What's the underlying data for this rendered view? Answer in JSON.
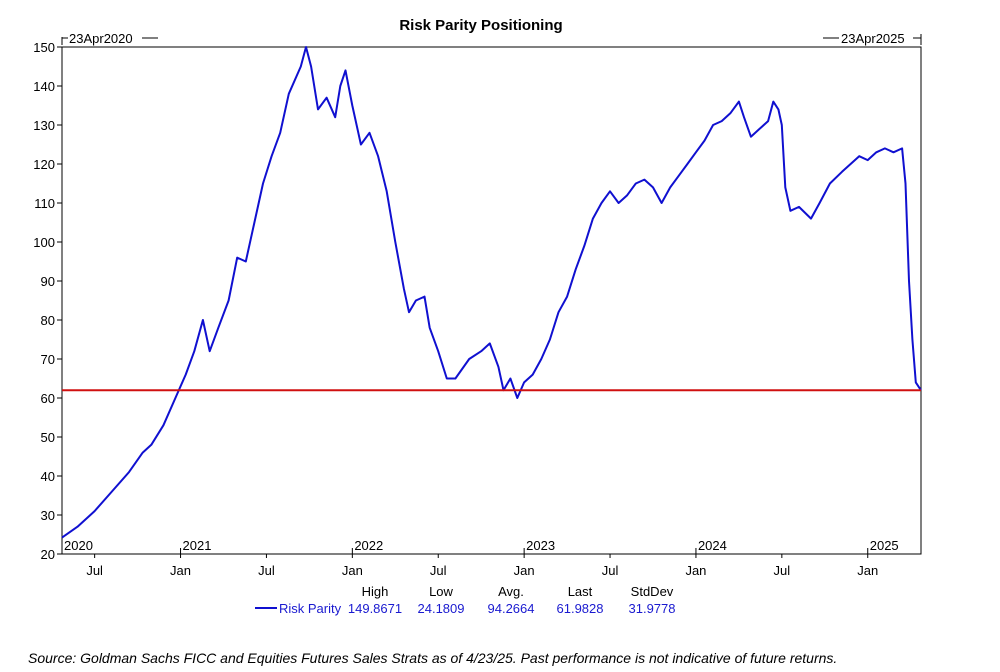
{
  "chart_data": {
    "type": "line",
    "title": "Risk Parity Positioning",
    "start_label": "23Apr2020",
    "end_label": "23Apr2025",
    "ylim": [
      20,
      150
    ],
    "yticks": [
      20,
      30,
      40,
      50,
      60,
      70,
      80,
      90,
      100,
      110,
      120,
      130,
      140,
      150
    ],
    "xlim": [
      2020.31,
      2025.31
    ],
    "year_labels": [
      {
        "label": "2020",
        "x": 2020.31
      },
      {
        "label": "2021",
        "x": 2021.0
      },
      {
        "label": "2022",
        "x": 2022.0
      },
      {
        "label": "2023",
        "x": 2023.0
      },
      {
        "label": "2024",
        "x": 2024.0
      },
      {
        "label": "2025",
        "x": 2025.0
      }
    ],
    "month_labels": [
      {
        "label": "Jul",
        "x": 2020.5
      },
      {
        "label": "Jan",
        "x": 2021.0
      },
      {
        "label": "Jul",
        "x": 2021.5
      },
      {
        "label": "Jan",
        "x": 2022.0
      },
      {
        "label": "Jul",
        "x": 2022.5
      },
      {
        "label": "Jan",
        "x": 2023.0
      },
      {
        "label": "Jul",
        "x": 2023.5
      },
      {
        "label": "Jan",
        "x": 2024.0
      },
      {
        "label": "Jul",
        "x": 2024.5
      },
      {
        "label": "Jan",
        "x": 2025.0
      }
    ],
    "reference_line": 62,
    "series": [
      {
        "name": "Risk Parity",
        "color": "#1010d0",
        "points": [
          [
            2020.31,
            24.2
          ],
          [
            2020.4,
            27
          ],
          [
            2020.5,
            31
          ],
          [
            2020.6,
            36
          ],
          [
            2020.7,
            41
          ],
          [
            2020.78,
            46
          ],
          [
            2020.83,
            48
          ],
          [
            2020.9,
            53
          ],
          [
            2020.97,
            60
          ],
          [
            2021.03,
            66
          ],
          [
            2021.08,
            72
          ],
          [
            2021.13,
            80
          ],
          [
            2021.17,
            72
          ],
          [
            2021.22,
            78
          ],
          [
            2021.28,
            85
          ],
          [
            2021.33,
            96
          ],
          [
            2021.38,
            95
          ],
          [
            2021.43,
            105
          ],
          [
            2021.48,
            115
          ],
          [
            2021.53,
            122
          ],
          [
            2021.58,
            128
          ],
          [
            2021.63,
            138
          ],
          [
            2021.7,
            145
          ],
          [
            2021.73,
            150
          ],
          [
            2021.76,
            145
          ],
          [
            2021.8,
            134
          ],
          [
            2021.85,
            137
          ],
          [
            2021.9,
            132
          ],
          [
            2021.93,
            140
          ],
          [
            2021.96,
            144
          ],
          [
            2022.0,
            135
          ],
          [
            2022.05,
            125
          ],
          [
            2022.1,
            128
          ],
          [
            2022.15,
            122
          ],
          [
            2022.2,
            113
          ],
          [
            2022.25,
            100
          ],
          [
            2022.3,
            88
          ],
          [
            2022.33,
            82
          ],
          [
            2022.37,
            85
          ],
          [
            2022.42,
            86
          ],
          [
            2022.45,
            78
          ],
          [
            2022.5,
            72
          ],
          [
            2022.55,
            65
          ],
          [
            2022.6,
            65
          ],
          [
            2022.68,
            70
          ],
          [
            2022.75,
            72
          ],
          [
            2022.8,
            74
          ],
          [
            2022.85,
            68
          ],
          [
            2022.88,
            62
          ],
          [
            2022.92,
            65
          ],
          [
            2022.96,
            60
          ],
          [
            2023.0,
            64
          ],
          [
            2023.05,
            66
          ],
          [
            2023.1,
            70
          ],
          [
            2023.15,
            75
          ],
          [
            2023.2,
            82
          ],
          [
            2023.25,
            86
          ],
          [
            2023.3,
            93
          ],
          [
            2023.35,
            99
          ],
          [
            2023.4,
            106
          ],
          [
            2023.45,
            110
          ],
          [
            2023.5,
            113
          ],
          [
            2023.55,
            110
          ],
          [
            2023.6,
            112
          ],
          [
            2023.65,
            115
          ],
          [
            2023.7,
            116
          ],
          [
            2023.75,
            114
          ],
          [
            2023.8,
            110
          ],
          [
            2023.85,
            114
          ],
          [
            2023.9,
            117
          ],
          [
            2023.95,
            120
          ],
          [
            2024.0,
            123
          ],
          [
            2024.05,
            126
          ],
          [
            2024.1,
            130
          ],
          [
            2024.15,
            131
          ],
          [
            2024.2,
            133
          ],
          [
            2024.25,
            136
          ],
          [
            2024.28,
            132
          ],
          [
            2024.32,
            127
          ],
          [
            2024.37,
            129
          ],
          [
            2024.42,
            131
          ],
          [
            2024.45,
            136
          ],
          [
            2024.48,
            134
          ],
          [
            2024.5,
            130
          ],
          [
            2024.52,
            114
          ],
          [
            2024.55,
            108
          ],
          [
            2024.6,
            109
          ],
          [
            2024.67,
            106
          ],
          [
            2024.72,
            110
          ],
          [
            2024.78,
            115
          ],
          [
            2024.85,
            118
          ],
          [
            2024.9,
            120
          ],
          [
            2024.95,
            122
          ],
          [
            2025.0,
            121
          ],
          [
            2025.05,
            123
          ],
          [
            2025.1,
            124
          ],
          [
            2025.15,
            123
          ],
          [
            2025.2,
            124
          ],
          [
            2025.22,
            115
          ],
          [
            2025.24,
            90
          ],
          [
            2025.26,
            75
          ],
          [
            2025.28,
            64
          ],
          [
            2025.31,
            61.98
          ]
        ]
      }
    ],
    "stats": {
      "headers": [
        "High",
        "Low",
        "Avg.",
        "Last",
        "StdDev"
      ],
      "label": "Risk Parity",
      "values": [
        "149.8671",
        "24.1809",
        "94.2664",
        "61.9828",
        "31.9778"
      ]
    }
  },
  "source_text": "Source: Goldman Sachs FICC and Equities Futures Sales Strats as of 4/23/25. Past performance is not indicative of future returns.",
  "colors": {
    "series": "#1010d0",
    "reference": "#d01010",
    "axis": "#000000"
  }
}
